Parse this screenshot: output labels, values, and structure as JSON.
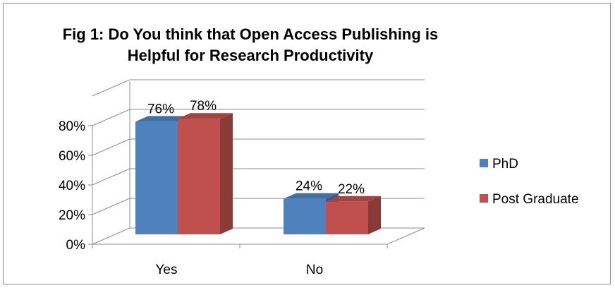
{
  "chart_data": {
    "type": "bar",
    "title": "Fig 1: Do You think that Open Access Publishing is Helpful for Research Productivity",
    "categories": [
      "Yes",
      "No"
    ],
    "series": [
      {
        "name": "PhD",
        "values": [
          76,
          24
        ],
        "labels": [
          "76%",
          "24%"
        ],
        "color": "#4f81bd"
      },
      {
        "name": "Post Graduate",
        "values": [
          78,
          22
        ],
        "labels": [
          "78%",
          "22%"
        ],
        "color": "#c0504d"
      }
    ],
    "y_ticks": [
      "0%",
      "20%",
      "40%",
      "60%",
      "80%"
    ],
    "ylim": [
      0,
      80
    ],
    "grid": true,
    "legend_position": "right",
    "style": "3d-clustered-column"
  }
}
